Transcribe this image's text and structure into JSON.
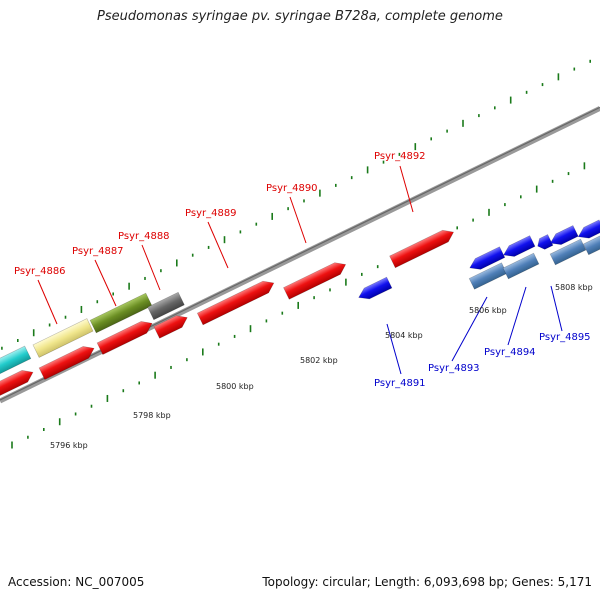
{
  "title": "Pseudomonas syringae pv. syringae B728a, complete genome",
  "footer": {
    "accession": "Accession: NC_007005",
    "stats": "Topology: circular; Length: 6,093,698 bp; Genes: 5,171"
  },
  "colors": {
    "forward_gene": "#ee1111",
    "reverse_gene": "#1111ee",
    "reverse_cds_steel": "#4f7fb8",
    "feature_cyan": "#22cccc",
    "feature_khaki": "#f0e68c",
    "feature_olive": "#6b8e23",
    "feature_gray": "#666666",
    "backbone": "#888888",
    "tick": "#1a7a1a",
    "forward_label": "#dd0000",
    "reverse_label": "#0000cc"
  },
  "scale_labels": [
    "5796 kbp",
    "5798 kbp",
    "5800 kbp",
    "5802 kbp",
    "5804 kbp",
    "5806 kbp",
    "5808 kbp"
  ],
  "forward_genes": [
    "Psyr_4886",
    "Psyr_4887",
    "Psyr_4888",
    "Psyr_4889",
    "Psyr_4890",
    "Psyr_4892"
  ],
  "reverse_genes": [
    "Psyr_4891",
    "Psyr_4893",
    "Psyr_4894",
    "Psyr_4895"
  ]
}
